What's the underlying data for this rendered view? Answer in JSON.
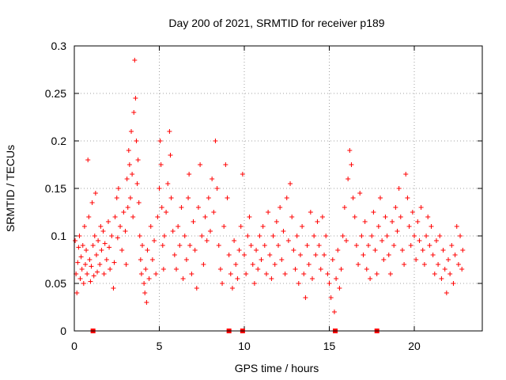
{
  "chart_data": {
    "type": "scatter",
    "title": "Day 200 of 2021, SRMTID for receiver p189",
    "xlabel": "GPS time / hours",
    "ylabel": "SRMTID / TECUs",
    "xlim": [
      0,
      24
    ],
    "ylim": [
      0,
      0.3
    ],
    "x_ticks": [
      0,
      5,
      10,
      15,
      20
    ],
    "y_ticks": [
      0,
      0.05,
      0.1,
      0.15,
      0.2,
      0.25,
      0.3
    ],
    "x_tick_labels": [
      "0",
      "5",
      "10",
      "15",
      "20"
    ],
    "y_tick_labels": [
      "0",
      "0.05",
      "0.1",
      "0.15",
      "0.2",
      "0.25",
      "0.3"
    ],
    "grid": true,
    "marker": "+",
    "color": "#ff0000",
    "series": [
      {
        "name": "SRMTID",
        "points": [
          [
            0.05,
            0.095
          ],
          [
            0.1,
            0.06
          ],
          [
            0.15,
            0.04
          ],
          [
            0.2,
            0.072
          ],
          [
            0.25,
            0.088
          ],
          [
            0.3,
            0.1
          ],
          [
            0.35,
            0.055
          ],
          [
            0.4,
            0.078
          ],
          [
            0.45,
            0.065
          ],
          [
            0.5,
            0.09
          ],
          [
            0.55,
            0.05
          ],
          [
            0.6,
            0.11
          ],
          [
            0.65,
            0.07
          ],
          [
            0.7,
            0.085
          ],
          [
            0.75,
            0.06
          ],
          [
            0.8,
            0.18
          ],
          [
            0.85,
            0.12
          ],
          [
            0.9,
            0.075
          ],
          [
            0.95,
            0.052
          ],
          [
            1.0,
            0.068
          ],
          [
            1.05,
            0.135
          ],
          [
            1.1,
            0.09
          ],
          [
            1.15,
            0.058
          ],
          [
            1.2,
            0.1
          ],
          [
            1.25,
            0.145
          ],
          [
            1.3,
            0.08
          ],
          [
            1.35,
            0.062
          ],
          [
            1.4,
            0.095
          ],
          [
            1.5,
            0.07
          ],
          [
            1.55,
            0.11
          ],
          [
            1.6,
            0.085
          ],
          [
            1.7,
            0.105
          ],
          [
            1.75,
            0.06
          ],
          [
            1.8,
            0.092
          ],
          [
            1.9,
            0.075
          ],
          [
            2.0,
            0.115
          ],
          [
            2.05,
            0.088
          ],
          [
            2.1,
            0.065
          ],
          [
            2.2,
            0.1
          ],
          [
            2.3,
            0.045
          ],
          [
            2.35,
            0.072
          ],
          [
            2.4,
            0.12
          ],
          [
            2.5,
            0.14
          ],
          [
            2.55,
            0.098
          ],
          [
            2.6,
            0.15
          ],
          [
            2.7,
            0.11
          ],
          [
            2.8,
            0.085
          ],
          [
            2.9,
            0.125
          ],
          [
            3.0,
            0.105
          ],
          [
            3.05,
            0.07
          ],
          [
            3.1,
            0.16
          ],
          [
            3.15,
            0.13
          ],
          [
            3.2,
            0.19
          ],
          [
            3.25,
            0.175
          ],
          [
            3.3,
            0.14
          ],
          [
            3.35,
            0.21
          ],
          [
            3.4,
            0.165
          ],
          [
            3.45,
            0.12
          ],
          [
            3.5,
            0.23
          ],
          [
            3.55,
            0.285
          ],
          [
            3.6,
            0.245
          ],
          [
            3.65,
            0.2
          ],
          [
            3.7,
            0.155
          ],
          [
            3.75,
            0.18
          ],
          [
            3.8,
            0.135
          ],
          [
            3.85,
            0.1
          ],
          [
            3.9,
            0.075
          ],
          [
            3.95,
            0.06
          ],
          [
            4.0,
            0.09
          ],
          [
            4.1,
            0.05
          ],
          [
            4.15,
            0.04
          ],
          [
            4.2,
            0.065
          ],
          [
            4.25,
            0.03
          ],
          [
            4.3,
            0.085
          ],
          [
            4.4,
            0.055
          ],
          [
            4.5,
            0.11
          ],
          [
            4.6,
            0.075
          ],
          [
            4.7,
            0.095
          ],
          [
            4.8,
            0.06
          ],
          [
            4.9,
            0.12
          ],
          [
            5.0,
            0.15
          ],
          [
            5.05,
            0.2
          ],
          [
            5.1,
            0.175
          ],
          [
            5.15,
            0.13
          ],
          [
            5.2,
            0.09
          ],
          [
            5.25,
            0.065
          ],
          [
            5.3,
            0.1
          ],
          [
            5.4,
            0.125
          ],
          [
            5.5,
            0.155
          ],
          [
            5.6,
            0.21
          ],
          [
            5.65,
            0.185
          ],
          [
            5.7,
            0.14
          ],
          [
            5.8,
            0.105
          ],
          [
            5.9,
            0.08
          ],
          [
            6.0,
            0.065
          ],
          [
            6.1,
            0.11
          ],
          [
            6.2,
            0.09
          ],
          [
            6.3,
            0.13
          ],
          [
            6.4,
            0.055
          ],
          [
            6.5,
            0.1
          ],
          [
            6.6,
            0.075
          ],
          [
            6.7,
            0.14
          ],
          [
            6.75,
            0.165
          ],
          [
            6.8,
            0.09
          ],
          [
            6.9,
            0.06
          ],
          [
            7.0,
            0.115
          ],
          [
            7.1,
            0.085
          ],
          [
            7.2,
            0.045
          ],
          [
            7.3,
            0.13
          ],
          [
            7.4,
            0.175
          ],
          [
            7.5,
            0.1
          ],
          [
            7.6,
            0.07
          ],
          [
            7.7,
            0.12
          ],
          [
            7.8,
            0.095
          ],
          [
            7.9,
            0.14
          ],
          [
            8.0,
            0.105
          ],
          [
            8.1,
            0.16
          ],
          [
            8.2,
            0.125
          ],
          [
            8.3,
            0.2
          ],
          [
            8.4,
            0.15
          ],
          [
            8.5,
            0.09
          ],
          [
            8.6,
            0.065
          ],
          [
            8.7,
            0.05
          ],
          [
            8.8,
            0.11
          ],
          [
            8.9,
            0.175
          ],
          [
            9.0,
            0.14
          ],
          [
            9.1,
            0.08
          ],
          [
            9.2,
            0.06
          ],
          [
            9.3,
            0.045
          ],
          [
            9.4,
            0.095
          ],
          [
            9.5,
            0.07
          ],
          [
            9.6,
            0.055
          ],
          [
            9.7,
            0.085
          ],
          [
            9.8,
            0.11
          ],
          [
            9.9,
            0.165
          ],
          [
            10.0,
            0.08
          ],
          [
            10.1,
            0.06
          ],
          [
            10.2,
            0.1
          ],
          [
            10.3,
            0.12
          ],
          [
            10.4,
            0.09
          ],
          [
            10.5,
            0.07
          ],
          [
            10.6,
            0.05
          ],
          [
            10.7,
            0.085
          ],
          [
            10.8,
            0.065
          ],
          [
            10.9,
            0.1
          ],
          [
            11.0,
            0.075
          ],
          [
            11.1,
            0.11
          ],
          [
            11.2,
            0.09
          ],
          [
            11.3,
            0.06
          ],
          [
            11.4,
            0.125
          ],
          [
            11.5,
            0.08
          ],
          [
            11.6,
            0.055
          ],
          [
            11.7,
            0.1
          ],
          [
            11.8,
            0.07
          ],
          [
            11.9,
            0.115
          ],
          [
            12.0,
            0.09
          ],
          [
            12.1,
            0.13
          ],
          [
            12.2,
            0.075
          ],
          [
            12.3,
            0.105
          ],
          [
            12.4,
            0.06
          ],
          [
            12.5,
            0.14
          ],
          [
            12.6,
            0.095
          ],
          [
            12.7,
            0.155
          ],
          [
            12.8,
            0.12
          ],
          [
            12.9,
            0.085
          ],
          [
            13.0,
            0.065
          ],
          [
            13.1,
            0.1
          ],
          [
            13.2,
            0.05
          ],
          [
            13.3,
            0.08
          ],
          [
            13.4,
            0.11
          ],
          [
            13.5,
            0.06
          ],
          [
            13.6,
            0.035
          ],
          [
            13.7,
            0.09
          ],
          [
            13.8,
            0.07
          ],
          [
            13.9,
            0.125
          ],
          [
            14.0,
            0.055
          ],
          [
            14.1,
            0.1
          ],
          [
            14.2,
            0.08
          ],
          [
            14.3,
            0.115
          ],
          [
            14.4,
            0.09
          ],
          [
            14.5,
            0.065
          ],
          [
            14.6,
            0.12
          ],
          [
            14.7,
            0.08
          ],
          [
            14.8,
            0.1
          ],
          [
            14.9,
            0.06
          ],
          [
            15.0,
            0.05
          ],
          [
            15.1,
            0.035
          ],
          [
            15.2,
            0.075
          ],
          [
            15.3,
            0.02
          ],
          [
            15.4,
            0.055
          ],
          [
            15.5,
            0.085
          ],
          [
            15.6,
            0.045
          ],
          [
            15.7,
            0.065
          ],
          [
            15.8,
            0.1
          ],
          [
            15.9,
            0.13
          ],
          [
            16.0,
            0.095
          ],
          [
            16.1,
            0.16
          ],
          [
            16.2,
            0.19
          ],
          [
            16.3,
            0.175
          ],
          [
            16.4,
            0.14
          ],
          [
            16.5,
            0.12
          ],
          [
            16.6,
            0.09
          ],
          [
            16.7,
            0.07
          ],
          [
            16.8,
            0.145
          ],
          [
            16.9,
            0.1
          ],
          [
            17.0,
            0.08
          ],
          [
            17.1,
            0.115
          ],
          [
            17.2,
            0.065
          ],
          [
            17.3,
            0.09
          ],
          [
            17.4,
            0.055
          ],
          [
            17.5,
            0.1
          ],
          [
            17.6,
            0.125
          ],
          [
            17.7,
            0.085
          ],
          [
            17.8,
            0.06
          ],
          [
            17.9,
            0.11
          ],
          [
            18.0,
            0.14
          ],
          [
            18.1,
            0.095
          ],
          [
            18.2,
            0.075
          ],
          [
            18.3,
            0.12
          ],
          [
            18.4,
            0.1
          ],
          [
            18.5,
            0.08
          ],
          [
            18.6,
            0.06
          ],
          [
            18.7,
            0.115
          ],
          [
            18.8,
            0.09
          ],
          [
            18.9,
            0.13
          ],
          [
            19.0,
            0.105
          ],
          [
            19.1,
            0.15
          ],
          [
            19.2,
            0.12
          ],
          [
            19.3,
            0.085
          ],
          [
            19.4,
            0.07
          ],
          [
            19.5,
            0.165
          ],
          [
            19.6,
            0.14
          ],
          [
            19.7,
            0.11
          ],
          [
            19.8,
            0.09
          ],
          [
            19.9,
            0.125
          ],
          [
            20.0,
            0.1
          ],
          [
            20.1,
            0.075
          ],
          [
            20.2,
            0.115
          ],
          [
            20.3,
            0.095
          ],
          [
            20.4,
            0.13
          ],
          [
            20.5,
            0.085
          ],
          [
            20.6,
            0.07
          ],
          [
            20.7,
            0.1
          ],
          [
            20.8,
            0.12
          ],
          [
            20.9,
            0.09
          ],
          [
            21.0,
            0.11
          ],
          [
            21.1,
            0.08
          ],
          [
            21.2,
            0.06
          ],
          [
            21.3,
            0.095
          ],
          [
            21.4,
            0.07
          ],
          [
            21.5,
            0.1
          ],
          [
            21.6,
            0.055
          ],
          [
            21.7,
            0.085
          ],
          [
            21.8,
            0.065
          ],
          [
            21.9,
            0.04
          ],
          [
            22.0,
            0.075
          ],
          [
            22.1,
            0.06
          ],
          [
            22.2,
            0.09
          ],
          [
            22.3,
            0.05
          ],
          [
            22.4,
            0.08
          ],
          [
            22.5,
            0.11
          ],
          [
            22.6,
            0.07
          ],
          [
            22.7,
            0.1
          ],
          [
            22.8,
            0.065
          ],
          [
            22.85,
            0.085
          ]
        ]
      }
    ],
    "zero_markers_x": [
      1.1,
      9.1,
      9.9,
      15.35,
      17.8
    ]
  }
}
